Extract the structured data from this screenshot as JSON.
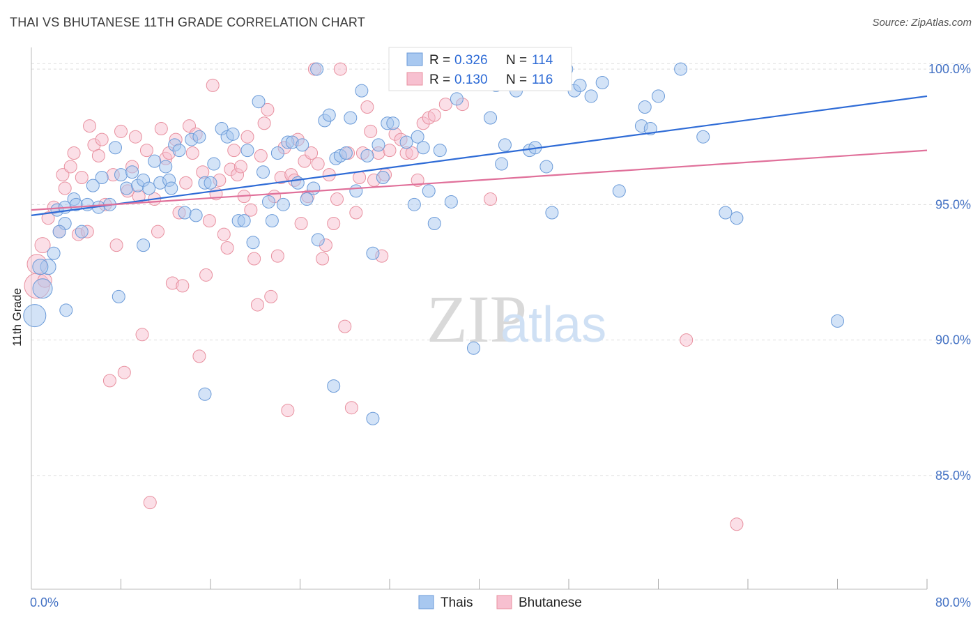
{
  "header": {
    "title": "THAI VS BHUTANESE 11TH GRADE CORRELATION CHART",
    "source": "Source: ZipAtlas.com"
  },
  "watermark": {
    "zip": "ZIP",
    "atlas": "atlas"
  },
  "stats_legend": {
    "thais": {
      "r_label": "R =",
      "r_value": "0.326",
      "n_label": "N =",
      "n_value": "114"
    },
    "bhutanese": {
      "r_label": "R =",
      "r_value": "0.130",
      "n_label": "N =",
      "n_value": "116"
    }
  },
  "colors": {
    "thais_fill": "#a8c8f0",
    "thais_stroke": "#6a9ad8",
    "thais_line": "#2e6bd6",
    "bhutanese_fill": "#f7c0d0",
    "bhutanese_stroke": "#e8909f",
    "bhutanese_line": "#e0709a",
    "grid": "#dddddd",
    "tick_text": "#4472c4"
  },
  "chart_data": {
    "type": "scatter",
    "title": "THAI VS BHUTANESE 11TH GRADE CORRELATION CHART",
    "xlabel": "",
    "ylabel": "11th Grade",
    "xlim": [
      0,
      80
    ],
    "ylim": [
      80.8,
      100.8
    ],
    "x_tick_labels": [
      {
        "value": 0,
        "label": "0.0%"
      },
      {
        "value": 80,
        "label": "80.0%"
      }
    ],
    "y_tick_labels": [
      {
        "value": 85,
        "label": "85.0%"
      },
      {
        "value": 90,
        "label": "90.0%"
      },
      {
        "value": 95,
        "label": "95.0%"
      },
      {
        "value": 100,
        "label": "100.0%"
      }
    ],
    "x_minor_ticks": [
      8,
      16,
      24,
      32,
      40,
      48,
      56,
      64,
      72,
      80
    ],
    "grid": true,
    "legend_position": "bottom-center",
    "series": [
      {
        "name": "Thais",
        "trend": [
          [
            0,
            94.6
          ],
          [
            80,
            99.0
          ]
        ],
        "points": [
          [
            0.3,
            90.9,
            16
          ],
          [
            1,
            91.9,
            14
          ],
          [
            1.5,
            92.7,
            11
          ],
          [
            2,
            93.2,
            9
          ],
          [
            2.3,
            94.8,
            9
          ],
          [
            3,
            94.9,
            9
          ],
          [
            3.8,
            95.2,
            9
          ],
          [
            4,
            95.0,
            9
          ],
          [
            5,
            95.0,
            9
          ],
          [
            6,
            94.9,
            9
          ],
          [
            7,
            95.0,
            9
          ],
          [
            3,
            94.3,
            9
          ],
          [
            2.5,
            94.0,
            9
          ],
          [
            4.5,
            94.0,
            9
          ],
          [
            5.5,
            95.7,
            9
          ],
          [
            6.3,
            96.0,
            9
          ],
          [
            7.5,
            97.1,
            9
          ],
          [
            8,
            96.1,
            9
          ],
          [
            8.5,
            95.6,
            9
          ],
          [
            9,
            96.2,
            9
          ],
          [
            9.5,
            95.7,
            9
          ],
          [
            10,
            95.9,
            9
          ],
          [
            10.5,
            95.6,
            9
          ],
          [
            11,
            96.6,
            9
          ],
          [
            11.5,
            95.8,
            9
          ],
          [
            12,
            96.4,
            9
          ],
          [
            12.3,
            95.9,
            9
          ],
          [
            12.5,
            95.6,
            9
          ],
          [
            12.8,
            97.2,
            9
          ],
          [
            13.2,
            97.0,
            9
          ],
          [
            13.7,
            94.7,
            9
          ],
          [
            14.3,
            97.4,
            9
          ],
          [
            14.7,
            94.6,
            9
          ],
          [
            15,
            97.5,
            9
          ],
          [
            15.5,
            95.8,
            9
          ],
          [
            16,
            95.8,
            9
          ],
          [
            16.3,
            96.5,
            9
          ],
          [
            17,
            97.8,
            9
          ],
          [
            17.5,
            97.5,
            9
          ],
          [
            18,
            97.6,
            9
          ],
          [
            18.5,
            94.4,
            9
          ],
          [
            19,
            94.4,
            9
          ],
          [
            19.3,
            97.0,
            9
          ],
          [
            19.8,
            93.6,
            9
          ],
          [
            20.3,
            98.8,
            9
          ],
          [
            20.7,
            96.2,
            9
          ],
          [
            21.2,
            95.1,
            9
          ],
          [
            21.5,
            94.4,
            9
          ],
          [
            22,
            96.9,
            9
          ],
          [
            22.5,
            95.0,
            9
          ],
          [
            22.9,
            97.3,
            9
          ],
          [
            23.3,
            97.3,
            9
          ],
          [
            23.8,
            95.8,
            9
          ],
          [
            24.2,
            97.2,
            9
          ],
          [
            24.6,
            95.2,
            9
          ],
          [
            25.2,
            95.6,
            9
          ],
          [
            25.6,
            93.7,
            9
          ],
          [
            26.2,
            98.1,
            9
          ],
          [
            26.6,
            98.3,
            9
          ],
          [
            27.2,
            96.7,
            9
          ],
          [
            27.6,
            96.8,
            9
          ],
          [
            28.1,
            96.9,
            9
          ],
          [
            28.5,
            98.2,
            9
          ],
          [
            29,
            95.5,
            9
          ],
          [
            29.5,
            99.2,
            9
          ],
          [
            30,
            96.8,
            9
          ],
          [
            30.5,
            93.2,
            9
          ],
          [
            31,
            97.2,
            9
          ],
          [
            31.4,
            96.0,
            9
          ],
          [
            27,
            88.3,
            9
          ],
          [
            15.5,
            88.0,
            9
          ],
          [
            30.5,
            87.1,
            9
          ],
          [
            31.8,
            98.0,
            9
          ],
          [
            32.3,
            98.0,
            9
          ],
          [
            33.5,
            97.3,
            9
          ],
          [
            34.5,
            97.5,
            9
          ],
          [
            35,
            97.1,
            9
          ],
          [
            34.2,
            95.0,
            9
          ],
          [
            35.5,
            95.5,
            9
          ],
          [
            36,
            94.3,
            9
          ],
          [
            36.5,
            97.0,
            9
          ],
          [
            37.5,
            95.1,
            9
          ],
          [
            38,
            98.9,
            9
          ],
          [
            39.5,
            89.7,
            9
          ],
          [
            41,
            98.2,
            9
          ],
          [
            42,
            96.5,
            9
          ],
          [
            42.3,
            97.2,
            9
          ],
          [
            44.5,
            97.0,
            9
          ],
          [
            45,
            97.1,
            9
          ],
          [
            46,
            96.4,
            9
          ],
          [
            46.5,
            94.7,
            9
          ],
          [
            38.5,
            100.0,
            9
          ],
          [
            41.5,
            99.4,
            9
          ],
          [
            43.3,
            99.2,
            9
          ],
          [
            47.8,
            100.0,
            9
          ],
          [
            48.5,
            99.2,
            9
          ],
          [
            49,
            99.4,
            9
          ],
          [
            50,
            99.0,
            9
          ],
          [
            51,
            99.5,
            9
          ],
          [
            52.5,
            95.5,
            9
          ],
          [
            54.5,
            97.9,
            9
          ],
          [
            54.8,
            98.6,
            9
          ],
          [
            55.3,
            97.8,
            9
          ],
          [
            56,
            99.0,
            9
          ],
          [
            58,
            100.0,
            9
          ],
          [
            60,
            97.5,
            9
          ],
          [
            62,
            94.7,
            9
          ],
          [
            63,
            94.5,
            9
          ],
          [
            72,
            90.7,
            9
          ],
          [
            10,
            93.5,
            9
          ],
          [
            7.8,
            91.6,
            9
          ],
          [
            3.1,
            91.1,
            9
          ],
          [
            0.8,
            92.7,
            11
          ],
          [
            37,
            100.0,
            9
          ],
          [
            25.5,
            100.0,
            9
          ]
        ]
      },
      {
        "name": "Bhutanese",
        "trend": [
          [
            0,
            94.8
          ],
          [
            80,
            97.0
          ]
        ],
        "points": [
          [
            0.5,
            92.0,
            18
          ],
          [
            0.5,
            92.8,
            14
          ],
          [
            1,
            93.5,
            11
          ],
          [
            1.2,
            92.2,
            10
          ],
          [
            1.5,
            94.5,
            9
          ],
          [
            2,
            94.9,
            9
          ],
          [
            2.5,
            94.0,
            9
          ],
          [
            2.8,
            96.1,
            9
          ],
          [
            3,
            95.6,
            9
          ],
          [
            3.5,
            96.4,
            9
          ],
          [
            3.8,
            96.9,
            9
          ],
          [
            4.2,
            93.9,
            9
          ],
          [
            4.5,
            96.0,
            9
          ],
          [
            5,
            94.0,
            9
          ],
          [
            5.2,
            97.9,
            9
          ],
          [
            5.6,
            97.2,
            9
          ],
          [
            6,
            96.8,
            9
          ],
          [
            6.3,
            97.4,
            9
          ],
          [
            6.6,
            95.0,
            9
          ],
          [
            7,
            88.5,
            9
          ],
          [
            7.3,
            96.1,
            9
          ],
          [
            7.6,
            93.5,
            9
          ],
          [
            8,
            97.7,
            9
          ],
          [
            8.3,
            88.8,
            9
          ],
          [
            8.6,
            95.5,
            9
          ],
          [
            9,
            96.4,
            9
          ],
          [
            9.3,
            97.5,
            9
          ],
          [
            9.6,
            95.3,
            9
          ],
          [
            9.9,
            90.2,
            9
          ],
          [
            10.3,
            97.0,
            9
          ],
          [
            10.6,
            84.0,
            9
          ],
          [
            11,
            95.2,
            9
          ],
          [
            11.3,
            94.0,
            9
          ],
          [
            11.6,
            97.8,
            9
          ],
          [
            12,
            96.7,
            9
          ],
          [
            12.3,
            96.9,
            9
          ],
          [
            12.6,
            92.1,
            9
          ],
          [
            12.9,
            97.4,
            9
          ],
          [
            13.2,
            94.7,
            9
          ],
          [
            13.5,
            92.0,
            9
          ],
          [
            13.8,
            95.8,
            9
          ],
          [
            14.1,
            97.9,
            9
          ],
          [
            14.4,
            96.9,
            9
          ],
          [
            14.7,
            97.6,
            9
          ],
          [
            15,
            89.4,
            9
          ],
          [
            15.3,
            96.2,
            9
          ],
          [
            15.6,
            92.4,
            9
          ],
          [
            15.9,
            94.4,
            9
          ],
          [
            16.2,
            99.4,
            9
          ],
          [
            16.5,
            95.4,
            9
          ],
          [
            16.8,
            95.9,
            9
          ],
          [
            17.2,
            93.9,
            9
          ],
          [
            17.5,
            93.4,
            9
          ],
          [
            17.8,
            96.3,
            9
          ],
          [
            18.1,
            97.0,
            9
          ],
          [
            18.4,
            96.1,
            9
          ],
          [
            18.7,
            96.4,
            9
          ],
          [
            19,
            95.3,
            9
          ],
          [
            19.3,
            97.5,
            9
          ],
          [
            19.6,
            94.8,
            9
          ],
          [
            19.9,
            93.0,
            9
          ],
          [
            20.2,
            91.3,
            9
          ],
          [
            20.5,
            96.8,
            9
          ],
          [
            20.8,
            98.0,
            9
          ],
          [
            21.1,
            98.5,
            9
          ],
          [
            21.4,
            91.6,
            9
          ],
          [
            21.7,
            95.3,
            9
          ],
          [
            22,
            93.1,
            9
          ],
          [
            22.3,
            96.0,
            9
          ],
          [
            22.6,
            97.1,
            9
          ],
          [
            22.9,
            87.4,
            9
          ],
          [
            23.2,
            96.1,
            9
          ],
          [
            23.5,
            95.9,
            9
          ],
          [
            23.8,
            97.4,
            9
          ],
          [
            24.1,
            94.3,
            9
          ],
          [
            24.4,
            96.6,
            9
          ],
          [
            24.7,
            95.3,
            9
          ],
          [
            25,
            96.9,
            9
          ],
          [
            25.3,
            100.0,
            9
          ],
          [
            25.6,
            96.5,
            9
          ],
          [
            26,
            93.0,
            9
          ],
          [
            26.3,
            93.5,
            9
          ],
          [
            26.6,
            96.1,
            9
          ],
          [
            27,
            94.3,
            9
          ],
          [
            27.3,
            95.2,
            9
          ],
          [
            27.6,
            100.0,
            9
          ],
          [
            28,
            90.5,
            9
          ],
          [
            28.3,
            96.9,
            9
          ],
          [
            28.6,
            87.5,
            9
          ],
          [
            29,
            94.7,
            9
          ],
          [
            29.3,
            96.0,
            9
          ],
          [
            29.6,
            96.9,
            9
          ],
          [
            30,
            98.6,
            9
          ],
          [
            30.3,
            97.7,
            9
          ],
          [
            30.6,
            95.9,
            9
          ],
          [
            31,
            96.9,
            9
          ],
          [
            31.3,
            93.1,
            9
          ],
          [
            31.6,
            96.1,
            9
          ],
          [
            32,
            97.0,
            9
          ],
          [
            32.5,
            97.6,
            9
          ],
          [
            33,
            97.4,
            9
          ],
          [
            33.5,
            96.9,
            9
          ],
          [
            34,
            96.9,
            9
          ],
          [
            34.5,
            95.9,
            9
          ],
          [
            35,
            98.0,
            9
          ],
          [
            35.5,
            98.2,
            9
          ],
          [
            36,
            98.3,
            9
          ],
          [
            37,
            98.7,
            9
          ],
          [
            38.5,
            98.7,
            9
          ],
          [
            39,
            99.5,
            9
          ],
          [
            39.5,
            100.0,
            9
          ],
          [
            41,
            95.2,
            9
          ],
          [
            58.5,
            90.0,
            9
          ],
          [
            63,
            83.2,
            9
          ]
        ]
      }
    ]
  }
}
